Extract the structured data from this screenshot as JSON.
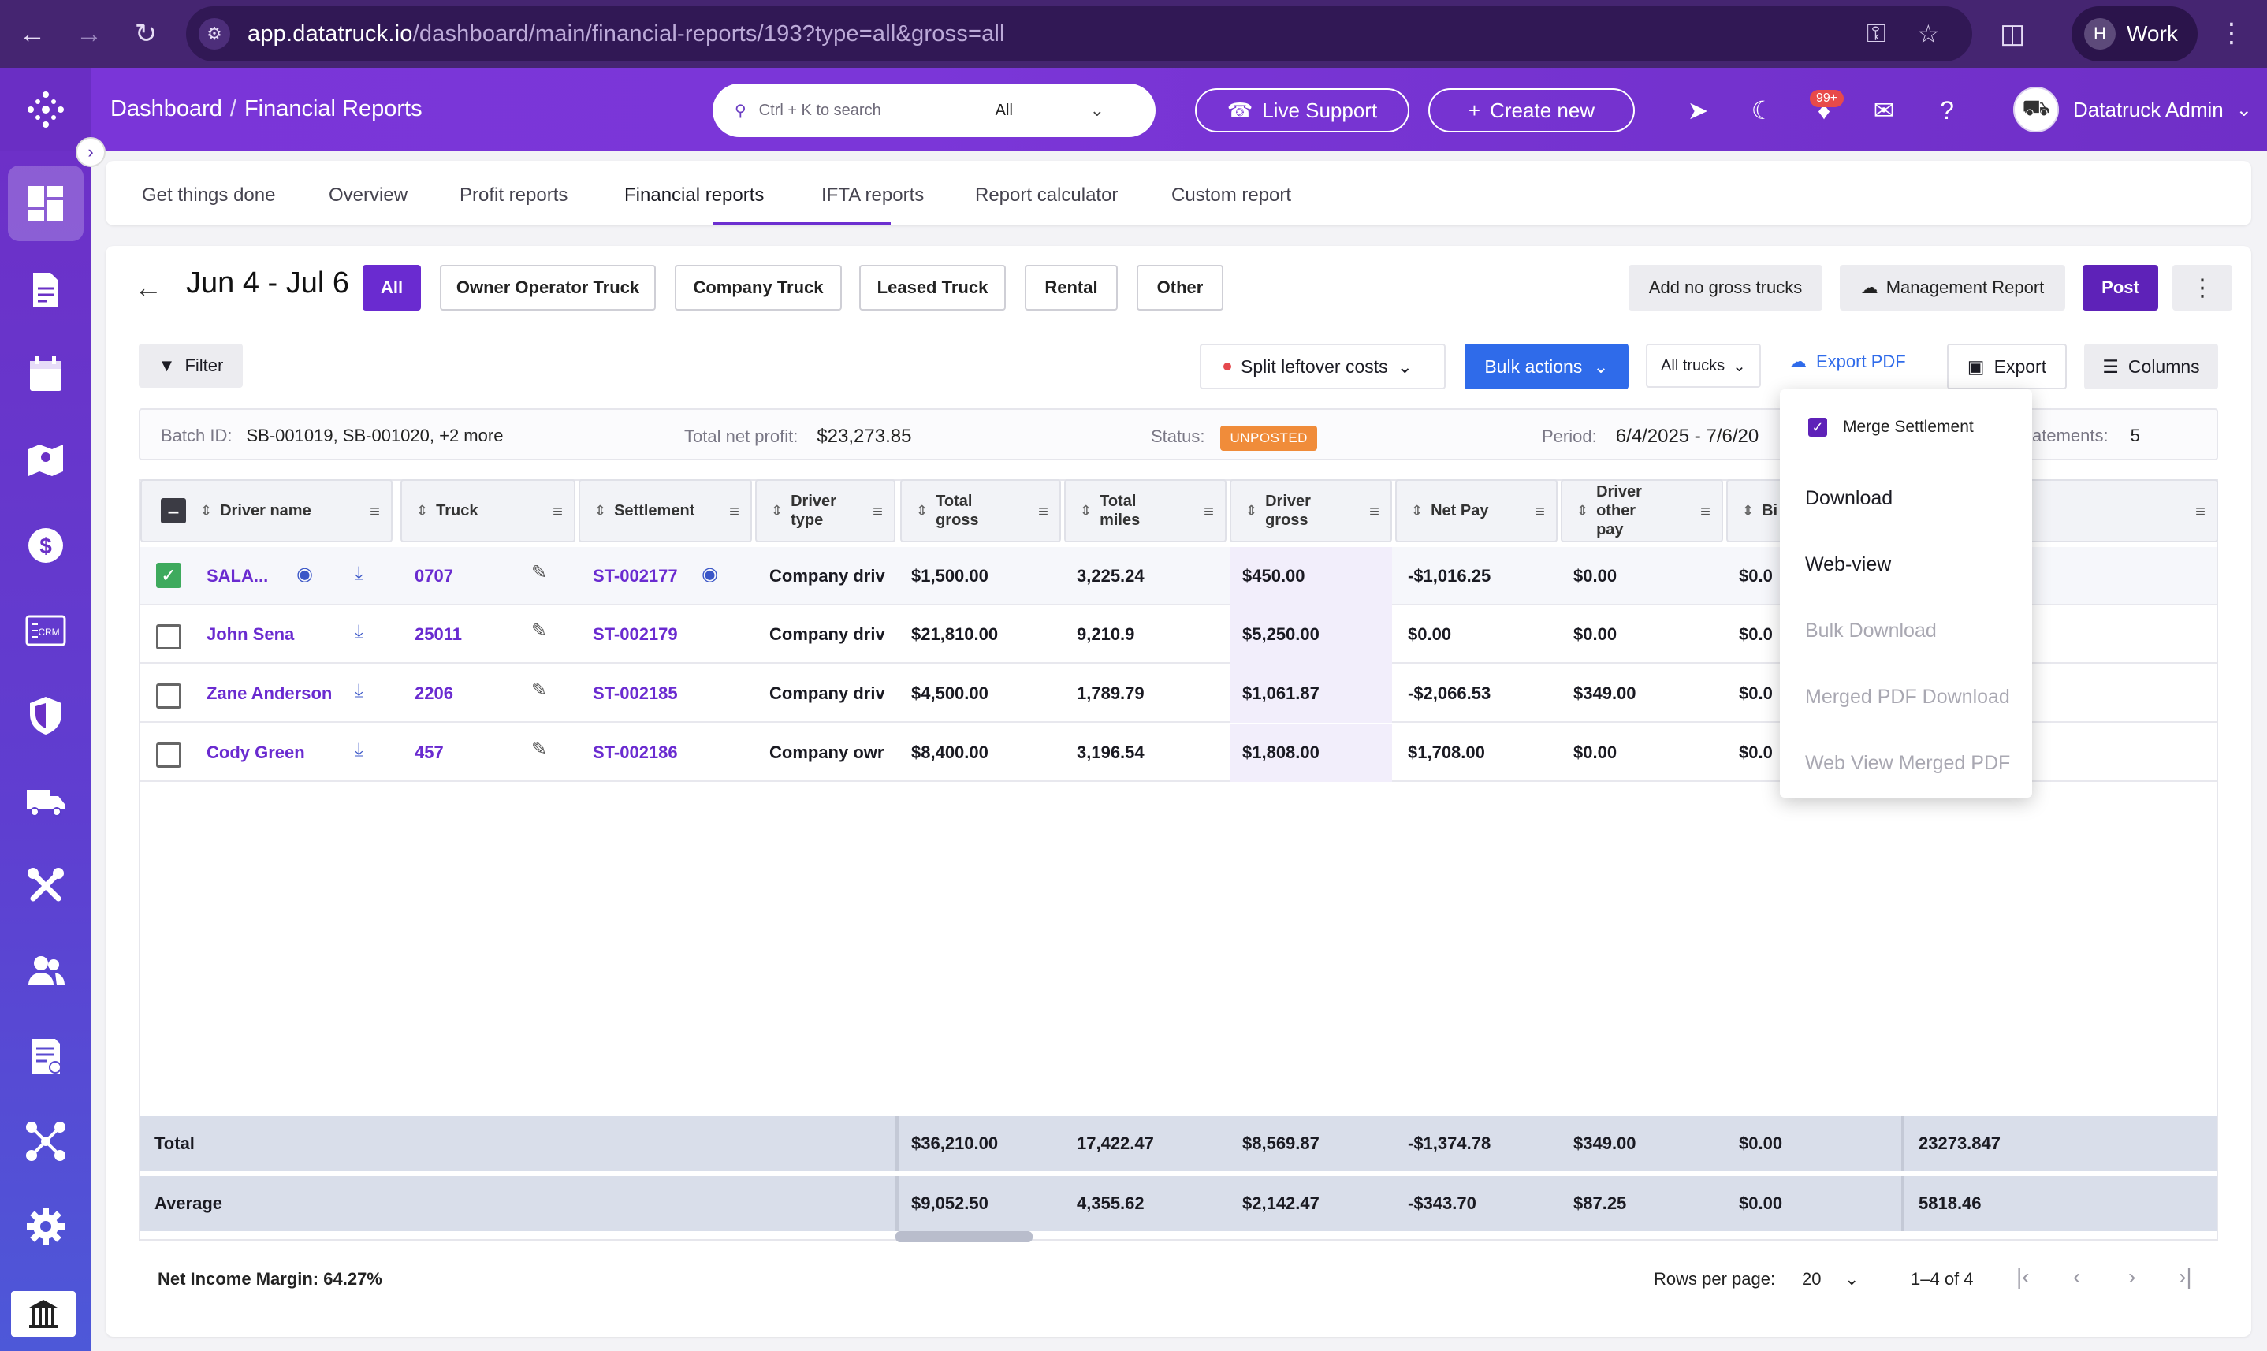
{
  "browser": {
    "url_host": "app.datatruck.io",
    "url_path": "/dashboard/main/financial-reports/193?type=all&gross=all",
    "profile_initial": "H",
    "profile_name": "Work"
  },
  "header": {
    "breadcrumb_root": "Dashboard",
    "breadcrumb_sep": "/",
    "breadcrumb_current": "Financial Reports",
    "search_placeholder": "Ctrl + K to search",
    "search_scope": "All",
    "live_support": "Live Support",
    "create_new": "Create new",
    "notif_count": "99+",
    "user_name": "Datatruck Admin"
  },
  "tabs": [
    {
      "label": "Get things done"
    },
    {
      "label": "Overview"
    },
    {
      "label": "Profit reports"
    },
    {
      "label": "Financial reports",
      "active": true
    },
    {
      "label": "IFTA reports"
    },
    {
      "label": "Report calculator"
    },
    {
      "label": "Custom report"
    }
  ],
  "toolbar": {
    "period": "Jun 4 - Jul 6",
    "filters": [
      "All",
      "Owner Operator Truck",
      "Company Truck",
      "Leased Truck",
      "Rental",
      "Other"
    ],
    "add_no_gross": "Add no gross trucks",
    "management_report": "Management Report",
    "post": "Post",
    "filter": "Filter",
    "split_leftover": "Split leftover costs",
    "bulk_actions": "Bulk actions",
    "all_trucks": "All trucks",
    "export_pdf": "Export PDF",
    "export": "Export",
    "columns": "Columns"
  },
  "info": {
    "batch_label": "Batch ID:",
    "batch_value": "SB-001019, SB-001020, +2 more",
    "profit_label": "Total net profit:",
    "profit_value": "$23,273.85",
    "status_label": "Status:",
    "status_value": "UNPOSTED",
    "period_label": "Period:",
    "period_value": "6/4/2025 - 7/6/20",
    "statements_label": "atements:",
    "statements_value": "5"
  },
  "table": {
    "headers": [
      "Driver name",
      "Truck",
      "Settlement",
      "Driver type",
      "Total gross",
      "Total miles",
      "Driver gross",
      "Net Pay",
      "Driver other pay",
      "Bi"
    ],
    "rows": [
      {
        "driver": "SALA...",
        "truck": "0707",
        "settlement": "ST-002177",
        "type": "Company driv",
        "gross": "$1,500.00",
        "miles": "3,225.24",
        "driver_gross": "$450.00",
        "net_pay": "-$1,016.25",
        "other_pay": "$0.00",
        "bi": "$0.0"
      },
      {
        "driver": "John Sena",
        "truck": "25011",
        "settlement": "ST-002179",
        "type": "Company driv",
        "gross": "$21,810.00",
        "miles": "9,210.9",
        "driver_gross": "$5,250.00",
        "net_pay": "$0.00",
        "other_pay": "$0.00",
        "bi": "$0.0"
      },
      {
        "driver": "Zane Anderson",
        "truck": "2206",
        "settlement": "ST-002185",
        "type": "Company driv",
        "gross": "$4,500.00",
        "miles": "1,789.79",
        "driver_gross": "$1,061.87",
        "net_pay": "-$2,066.53",
        "other_pay": "$349.00",
        "bi": "$0.0"
      },
      {
        "driver": "Cody Green",
        "truck": "457",
        "settlement": "ST-002186",
        "type": "Company owr",
        "gross": "$8,400.00",
        "miles": "3,196.54",
        "driver_gross": "$1,808.00",
        "net_pay": "$1,708.00",
        "other_pay": "$0.00",
        "bi": "$0.0"
      }
    ],
    "total": {
      "label": "Total",
      "gross": "$36,210.00",
      "miles": "17,422.47",
      "driver_gross": "$8,569.87",
      "net_pay": "-$1,374.78",
      "other_pay": "$349.00",
      "bi": "$0.00",
      "profit": "23273.847"
    },
    "average": {
      "label": "Average",
      "gross": "$9,052.50",
      "miles": "4,355.62",
      "driver_gross": "$2,142.47",
      "net_pay": "-$343.70",
      "other_pay": "$87.25",
      "bi": "$0.00",
      "profit": "5818.46"
    }
  },
  "footer": {
    "net_income": "Net Income Margin: 64.27%",
    "rows_per_page_label": "Rows per page:",
    "rows_per_page": "20",
    "range": "1–4 of 4"
  },
  "dropdown": {
    "merge": "Merge Settlement",
    "items": [
      {
        "label": "Download",
        "enabled": true
      },
      {
        "label": "Web-view",
        "enabled": true
      },
      {
        "label": "Bulk Download",
        "enabled": false
      },
      {
        "label": "Merged PDF Download",
        "enabled": false
      },
      {
        "label": "Web View Merged PDF",
        "enabled": false
      }
    ]
  },
  "colors": {
    "accent": "#6a2bd0",
    "primary_blue": "#2f6bea",
    "status_orange": "#f08c3a"
  }
}
